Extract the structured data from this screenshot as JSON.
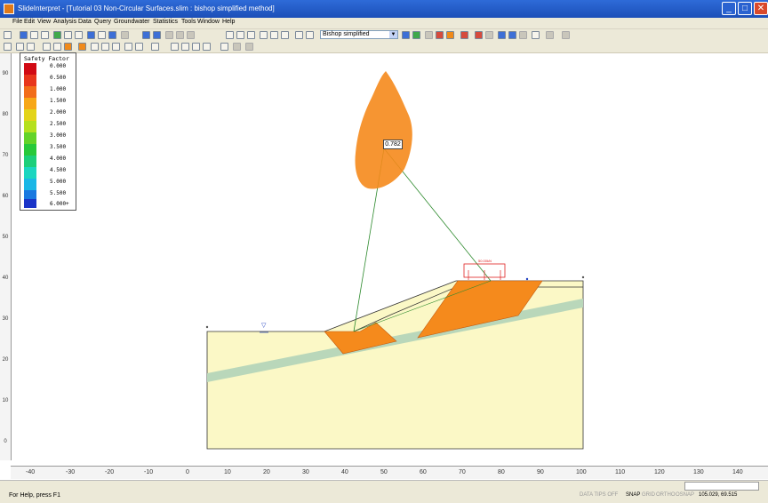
{
  "window": {
    "title": "SlideInterpret - [Tutorial 03 Non-Circular Surfaces.slim : bishop simplified method]",
    "minimize_glyph": "_",
    "maximize_glyph": "□",
    "close_glyph": "✕"
  },
  "menu": {
    "items": [
      "File",
      "Edit",
      "View",
      "Analysis",
      "Data",
      "Query",
      "Groundwater",
      "Statistics",
      "Tools",
      "Window",
      "Help"
    ]
  },
  "toolbar": {
    "method_select": "Bishop simplified",
    "method_arrow": "▼"
  },
  "legend": {
    "title": "Safety Factor",
    "entries": [
      {
        "label": "0.000",
        "color": "#d10a14"
      },
      {
        "label": "0.500",
        "color": "#e8361c"
      },
      {
        "label": "1.000",
        "color": "#f26d1a"
      },
      {
        "label": "1.500",
        "color": "#f7a717"
      },
      {
        "label": "2.000",
        "color": "#e3d41a"
      },
      {
        "label": "2.500",
        "color": "#b5e01e"
      },
      {
        "label": "3.000",
        "color": "#63d329"
      },
      {
        "label": "3.500",
        "color": "#27c93a"
      },
      {
        "label": "4.000",
        "color": "#1ccf7a"
      },
      {
        "label": "4.500",
        "color": "#1bd6c0"
      },
      {
        "label": "5.000",
        "color": "#1ab7e6"
      },
      {
        "label": "5.500",
        "color": "#1a79e0"
      },
      {
        "label": "6.000+",
        "color": "#1a34c8"
      }
    ]
  },
  "model": {
    "fs_label": "0.782",
    "load_label": "50.00kN",
    "water_symbol": "▽",
    "colors": {
      "soil": "#fbf8c6",
      "weak_layer": "#b9d7ba",
      "slip_mass": "#f58a1c",
      "load": "#e02020",
      "cloud": "#f58a1c"
    }
  },
  "axis": {
    "x_ticks": [
      "-40",
      "-30",
      "-20",
      "-10",
      "0",
      "10",
      "20",
      "30",
      "40",
      "50",
      "60",
      "70",
      "80",
      "90",
      "100",
      "110",
      "120",
      "130",
      "140"
    ],
    "y_ticks": [
      "90",
      "80",
      "70",
      "60",
      "50",
      "40",
      "30",
      "20",
      "10",
      "0"
    ]
  },
  "status": {
    "help": "For Help, press F1",
    "data_tips": "DATA TIPS OFF",
    "snap": "SNAP",
    "grid": "GRID",
    "ortho": "ORTHO",
    "osnap": "OSNAP",
    "coordinates": "105.029, 69.515"
  }
}
